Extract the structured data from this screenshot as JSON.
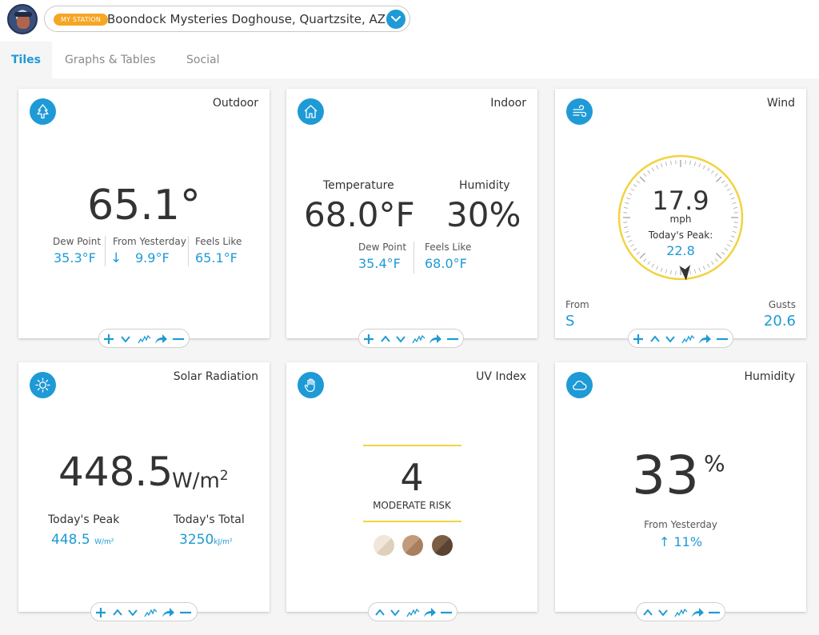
{
  "header": {
    "station_badge": "MY STATION",
    "station_name": "Boondock Mysteries Doghouse, Quartzsite, AZ"
  },
  "tabs": [
    {
      "label": "Tiles",
      "active": true
    },
    {
      "label": "Graphs & Tables",
      "active": false
    },
    {
      "label": "Social",
      "active": false
    }
  ],
  "outdoor": {
    "title": "Outdoor",
    "temp": "65.1°",
    "dew_point_label": "Dew Point",
    "dew_point": "35.3°F",
    "from_yesterday_label": "From Yesterday",
    "from_yesterday_arrow": "↓",
    "from_yesterday": "9.9°F",
    "feels_like_label": "Feels Like",
    "feels_like": "65.1°F"
  },
  "indoor": {
    "title": "Indoor",
    "temperature_label": "Temperature",
    "temperature": "68.0°F",
    "humidity_label": "Humidity",
    "humidity": "30%",
    "dew_point_label": "Dew Point",
    "dew_point": "35.4°F",
    "feels_like_label": "Feels Like",
    "feels_like": "68.0°F"
  },
  "wind": {
    "title": "Wind",
    "speed": "17.9",
    "unit": "mph",
    "peak_label": "Today's Peak:",
    "peak": "22.8",
    "from_label": "From",
    "from": "S",
    "gusts_label": "Gusts",
    "gusts": "20.6",
    "direction_deg": 175
  },
  "solar": {
    "title": "Solar Radiation",
    "value": "448.5",
    "unit": "W/m",
    "unit_sup": "2",
    "peak_label": "Today's Peak",
    "peak": "448.5",
    "peak_unit": "W/m²",
    "total_label": "Today's Total",
    "total": "3250",
    "total_unit": "kJ/m²"
  },
  "uv": {
    "title": "UV Index",
    "value": "4",
    "risk": "MODERATE RISK",
    "skin_tones": [
      "#e8dccd",
      "#b58b6c",
      "#6e523c"
    ]
  },
  "humidity": {
    "title": "Humidity",
    "value": "33",
    "unit": "%",
    "from_yesterday_label": "From Yesterday",
    "arrow": "↑",
    "change": "11%"
  },
  "colors": {
    "accent": "#1e9ad6",
    "badge": "#f5a623",
    "gauge": "#f2d340"
  },
  "icons": {
    "outdoor": "tree-icon",
    "indoor": "house-icon",
    "wind": "wind-icon",
    "solar": "sun-icon",
    "uv": "hand-icon",
    "humidity": "cloud-icon"
  }
}
